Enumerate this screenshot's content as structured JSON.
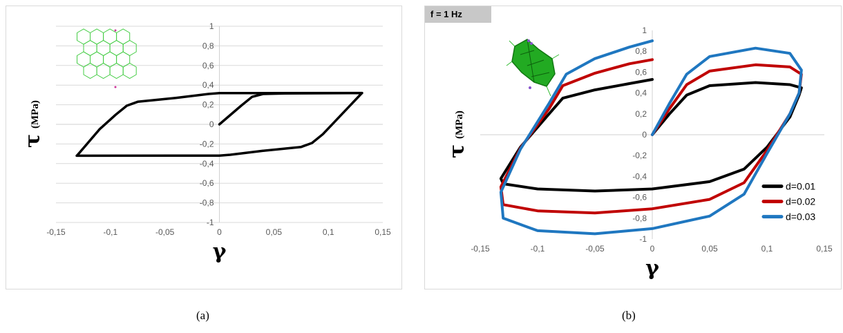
{
  "captions": {
    "a": "(a)",
    "b": "(b)"
  },
  "chart_data": [
    {
      "type": "line",
      "panel": "a",
      "tag": "",
      "ylabel_symbol": "τ",
      "ylabel_unit": "(MPa)",
      "xlabel": "γ",
      "xlim": [
        -0.15,
        0.15
      ],
      "ylim": [
        -1,
        1
      ],
      "xticks": [
        -0.15,
        -0.1,
        -0.05,
        0,
        0.05,
        0.1,
        0.15
      ],
      "xtick_labels": [
        "-0,15",
        "-0,1",
        "-0,05",
        "0",
        "0,05",
        "0,1",
        "0,15"
      ],
      "yticks": [
        1,
        0.8,
        0.6,
        0.4,
        0.2,
        0,
        -0.2,
        -0.4,
        -0.6,
        -0.8,
        -1
      ],
      "ytick_labels": [
        "1",
        "0,8",
        "0,6",
        "0,4",
        "0,2",
        "0",
        "-0,2",
        "-0,4",
        "-0,6",
        "-0,8",
        "-1"
      ],
      "grid": "horizontal",
      "inset_icon": "hexagonal-lattice-icon",
      "series": [
        {
          "color": "#000000",
          "points": [
            [
              0,
              0
            ],
            [
              0.02,
              0.19
            ],
            [
              0.03,
              0.28
            ],
            [
              0.04,
              0.31
            ],
            [
              0.06,
              0.315
            ],
            [
              0.131,
              0.32
            ],
            [
              0.13,
              0.31
            ],
            [
              0.095,
              -0.1
            ],
            [
              0.085,
              -0.19
            ],
            [
              0.075,
              -0.23
            ],
            [
              0.04,
              -0.27
            ],
            [
              0.01,
              -0.31
            ],
            [
              0,
              -0.318
            ],
            [
              -0.131,
              -0.32
            ],
            [
              -0.13,
              -0.31
            ],
            [
              -0.11,
              -0.05
            ],
            [
              -0.095,
              0.1
            ],
            [
              -0.085,
              0.19
            ],
            [
              -0.075,
              0.23
            ],
            [
              -0.04,
              0.27
            ],
            [
              -0.01,
              0.31
            ],
            [
              0,
              0.318
            ],
            [
              0.131,
              0.32
            ]
          ]
        }
      ]
    },
    {
      "type": "line",
      "panel": "b",
      "tag": "f = 1 Hz",
      "ylabel_symbol": "τ",
      "ylabel_unit": "(MPa)",
      "xlabel": "γ",
      "xlim": [
        -0.15,
        0.15
      ],
      "ylim": [
        -1,
        1
      ],
      "xticks": [
        -0.15,
        -0.1,
        -0.05,
        0,
        0.05,
        0.1,
        0.15
      ],
      "xtick_labels": [
        "-0,15",
        "-0,1",
        "-0,05",
        "0",
        "0,05",
        "0,1",
        "0,15"
      ],
      "yticks": [
        1,
        0.8,
        0.6,
        0.4,
        0.2,
        0,
        -0.2,
        -0.4,
        -0.6,
        -0.8,
        -1
      ],
      "ytick_labels": [
        "1",
        "0,8",
        "0,6",
        "0,4",
        "0,2",
        "0",
        "-0,2",
        "-0,4",
        "-0,6",
        "-0,8",
        "-1"
      ],
      "grid": "none",
      "legend_position": "bottom-right",
      "inset_icon": "green-lattice-icon",
      "series": [
        {
          "name": "d=0.01",
          "color": "#000000",
          "points": [
            [
              0,
              0
            ],
            [
              0.015,
              0.2
            ],
            [
              0.03,
              0.38
            ],
            [
              0.05,
              0.47
            ],
            [
              0.09,
              0.5
            ],
            [
              0.12,
              0.48
            ],
            [
              0.13,
              0.45
            ],
            [
              0.128,
              0.38
            ],
            [
              0.12,
              0.17
            ],
            [
              0.1,
              -0.12
            ],
            [
              0.08,
              -0.33
            ],
            [
              0.05,
              -0.45
            ],
            [
              0,
              -0.52
            ],
            [
              -0.05,
              -0.54
            ],
            [
              -0.1,
              -0.52
            ],
            [
              -0.13,
              -0.47
            ],
            [
              -0.132,
              -0.42
            ],
            [
              -0.115,
              -0.12
            ],
            [
              -0.09,
              0.2
            ],
            [
              -0.078,
              0.35
            ],
            [
              -0.05,
              0.43
            ],
            [
              -0.02,
              0.49
            ],
            [
              0,
              0.53
            ]
          ]
        },
        {
          "name": "d=0.02",
          "color": "#c00000",
          "points": [
            [
              0,
              0
            ],
            [
              0.015,
              0.25
            ],
            [
              0.03,
              0.48
            ],
            [
              0.05,
              0.61
            ],
            [
              0.09,
              0.67
            ],
            [
              0.12,
              0.65
            ],
            [
              0.13,
              0.58
            ],
            [
              0.128,
              0.4
            ],
            [
              0.12,
              0.2
            ],
            [
              0.1,
              -0.15
            ],
            [
              0.08,
              -0.46
            ],
            [
              0.05,
              -0.62
            ],
            [
              0,
              -0.71
            ],
            [
              -0.05,
              -0.75
            ],
            [
              -0.1,
              -0.73
            ],
            [
              -0.13,
              -0.67
            ],
            [
              -0.132,
              -0.5
            ],
            [
              -0.115,
              -0.13
            ],
            [
              -0.09,
              0.25
            ],
            [
              -0.078,
              0.47
            ],
            [
              -0.05,
              0.59
            ],
            [
              -0.02,
              0.68
            ],
            [
              0,
              0.72
            ]
          ]
        },
        {
          "name": "d=0.03",
          "color": "#1f77c0",
          "points": [
            [
              0,
              0
            ],
            [
              0.015,
              0.3
            ],
            [
              0.03,
              0.58
            ],
            [
              0.05,
              0.75
            ],
            [
              0.09,
              0.83
            ],
            [
              0.12,
              0.78
            ],
            [
              0.13,
              0.62
            ],
            [
              0.128,
              0.4
            ],
            [
              0.12,
              0.2
            ],
            [
              0.1,
              -0.18
            ],
            [
              0.08,
              -0.57
            ],
            [
              0.05,
              -0.78
            ],
            [
              0,
              -0.9
            ],
            [
              -0.05,
              -0.95
            ],
            [
              -0.1,
              -0.92
            ],
            [
              -0.13,
              -0.8
            ],
            [
              -0.132,
              -0.55
            ],
            [
              -0.115,
              -0.14
            ],
            [
              -0.09,
              0.3
            ],
            [
              -0.075,
              0.58
            ],
            [
              -0.05,
              0.73
            ],
            [
              -0.02,
              0.84
            ],
            [
              0,
              0.9
            ]
          ]
        }
      ]
    }
  ]
}
